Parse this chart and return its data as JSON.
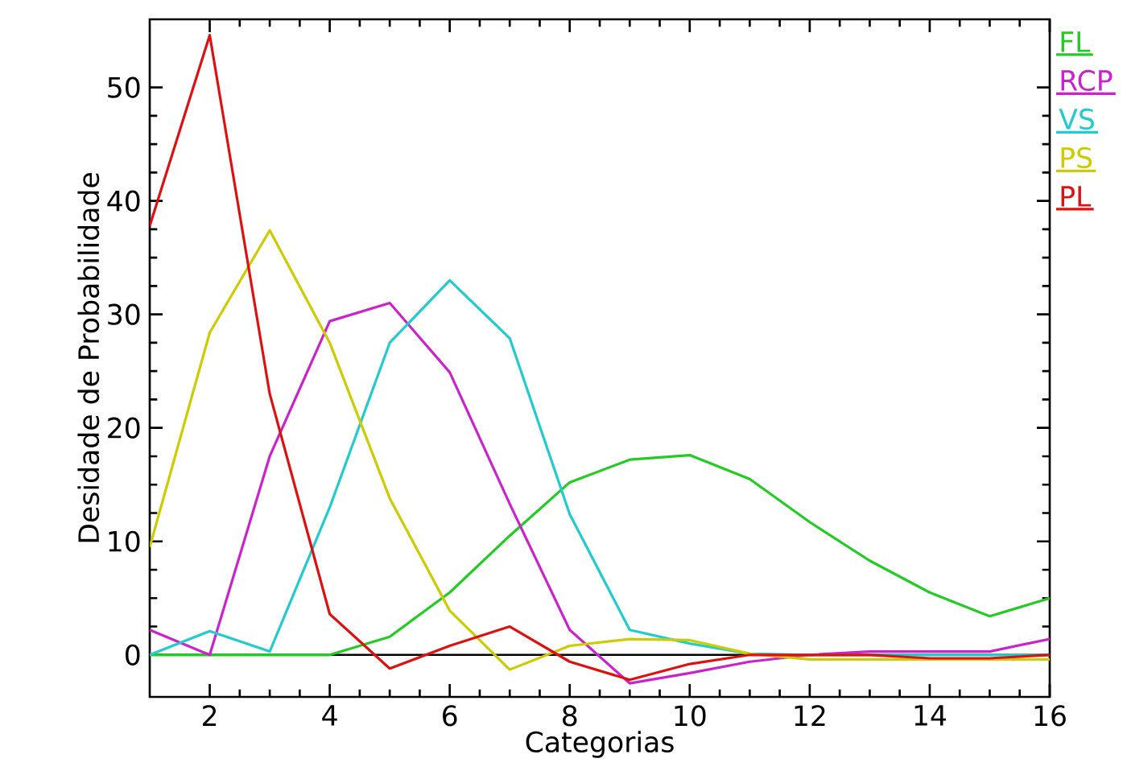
{
  "chart_data": {
    "type": "line",
    "xlabel": "Categorias",
    "ylabel": "Desidade de Probabilidade",
    "x": [
      1,
      2,
      3,
      4,
      5,
      6,
      7,
      8,
      9,
      10,
      11,
      12,
      13,
      14,
      15,
      16
    ],
    "series": [
      {
        "name": "FL",
        "color": "#22cc22",
        "values": [
          0,
          0,
          0,
          0,
          1.6,
          5.5,
          10.5,
          15.2,
          17.2,
          17.6,
          15.5,
          11.7,
          8.3,
          5.5,
          3.4,
          5.0
        ]
      },
      {
        "name": "RCP",
        "color": "#cc22cc",
        "values": [
          2.2,
          0,
          17.5,
          29.4,
          31.0,
          24.9,
          13.3,
          2.2,
          -2.5,
          -1.6,
          -0.6,
          0,
          0.3,
          0.3,
          0.3,
          1.4
        ]
      },
      {
        "name": "VS",
        "color": "#22cccc",
        "values": [
          0,
          2.1,
          0.3,
          13,
          27.5,
          33.0,
          27.9,
          12.4,
          2.2,
          1.0,
          0.1,
          0,
          0,
          0,
          0,
          0
        ]
      },
      {
        "name": "PS",
        "color": "#cccc00",
        "values": [
          9.5,
          28.4,
          37.4,
          27.5,
          13.8,
          3.9,
          -1.3,
          0.8,
          1.4,
          1.3,
          0.1,
          -0.4,
          -0.4,
          -0.4,
          -0.4,
          -0.4
        ]
      },
      {
        "name": "PL",
        "color": "#dd1111",
        "values": [
          37.8,
          54.6,
          23,
          3.6,
          -1.2,
          0.8,
          2.5,
          -0.6,
          -2.2,
          -0.8,
          0,
          0,
          0,
          -0.3,
          -0.3,
          0
        ]
      }
    ],
    "xlim": [
      1,
      16
    ],
    "ylim": [
      -3.7,
      56
    ],
    "xticks": [
      2,
      4,
      6,
      8,
      10,
      12,
      14,
      16
    ],
    "yticks": [
      0,
      10,
      20,
      30,
      40,
      50
    ],
    "ref_lines": [
      {
        "axis": "y",
        "value": 0,
        "color": "#000000"
      }
    ],
    "legend": "top right",
    "marker": "none",
    "line_style": "solid"
  }
}
